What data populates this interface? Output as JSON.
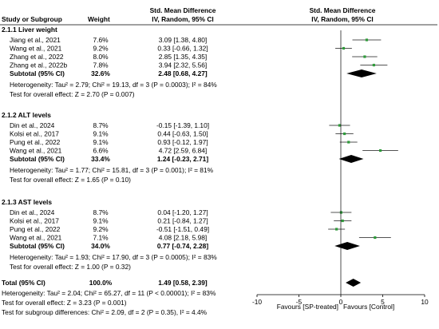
{
  "header": {
    "study_col": "Study or Subgroup",
    "weight_col": "Weight",
    "smd_col_1": "Std. Mean Difference",
    "smd_col_2": "IV, Random, 95% CI",
    "plot_col_1": "Std. Mean Difference",
    "plot_col_2": "IV, Random, 95% CI"
  },
  "chart_data": {
    "type": "forest",
    "xlim": [
      -10,
      10
    ],
    "xticks": [
      "-10",
      "-5",
      "0",
      "5",
      "10"
    ],
    "xlabel_left": "Favours [SP-treated]",
    "xlabel_right": "Favours [Control]",
    "colors": {
      "point": "#2e9b3a",
      "line": "#1a1a1a",
      "diamond": "#000000"
    },
    "subgroups": [
      {
        "title": "2.1.1 Liver weight",
        "studies": [
          {
            "study": "Jiang et al., 2021",
            "weight": "7.6%",
            "ci": "3.09 [1.38, 4.80]",
            "est": 3.09,
            "low": 1.38,
            "high": 4.8
          },
          {
            "study": "Wang et al., 2021",
            "weight": "9.2%",
            "ci": "0.33 [-0.66, 1.32]",
            "est": 0.33,
            "low": -0.66,
            "high": 1.32
          },
          {
            "study": "Zhang et al., 2022",
            "weight": "8.0%",
            "ci": "2.85 [1.35, 4.35]",
            "est": 2.85,
            "low": 1.35,
            "high": 4.35
          },
          {
            "study": "Zhang et al., 2022b",
            "weight": "7.8%",
            "ci": "3.94 [2.32, 5.56]",
            "est": 3.94,
            "low": 2.32,
            "high": 5.56
          }
        ],
        "subtotal": {
          "label": "Subtotal (95% CI)",
          "weight": "32.6%",
          "ci": "2.48 [0.68, 4.27]",
          "est": 2.48,
          "low": 0.68,
          "high": 4.27
        },
        "heterogeneity": "Heterogeneity: Tau² = 2.79; Chi² = 19.13, df = 3 (P = 0.0003); I² = 84%",
        "overall": "Test for overall effect: Z = 2.70 (P = 0.007)"
      },
      {
        "title": "2.1.2 ALT levels",
        "studies": [
          {
            "study": "Din et al., 2024",
            "weight": "8.7%",
            "ci": "-0.15 [-1.39, 1.10]",
            "est": -0.15,
            "low": -1.39,
            "high": 1.1
          },
          {
            "study": "Kolsi et al., 2017",
            "weight": "9.1%",
            "ci": "0.44 [-0.63, 1.50]",
            "est": 0.44,
            "low": -0.63,
            "high": 1.5
          },
          {
            "study": "Pung et al., 2022",
            "weight": "9.1%",
            "ci": "0.93 [-0.12, 1.97]",
            "est": 0.93,
            "low": -0.12,
            "high": 1.97
          },
          {
            "study": "Wang et al., 2021",
            "weight": "6.6%",
            "ci": "4.72 [2.59, 6.84]",
            "est": 4.72,
            "low": 2.59,
            "high": 6.84
          }
        ],
        "subtotal": {
          "label": "Subtotal (95% CI)",
          "weight": "33.4%",
          "ci": "1.24 [-0.23, 2.71]",
          "est": 1.24,
          "low": -0.23,
          "high": 2.71
        },
        "heterogeneity": "Heterogeneity: Tau² = 1.77; Chi² = 15.81, df = 3 (P = 0.001); I² = 81%",
        "overall": "Test for overall effect: Z = 1.65 (P = 0.10)"
      },
      {
        "title": "2.1.3 AST levels",
        "studies": [
          {
            "study": "Din et al., 2024",
            "weight": "8.7%",
            "ci": "0.04 [-1.20, 1.27]",
            "est": 0.04,
            "low": -1.2,
            "high": 1.27
          },
          {
            "study": "Kolsi et al., 2017",
            "weight": "9.1%",
            "ci": "0.21 [-0.84, 1.27]",
            "est": 0.21,
            "low": -0.84,
            "high": 1.27
          },
          {
            "study": "Pung et al., 2022",
            "weight": "9.2%",
            "ci": "-0.51 [-1.51, 0.49]",
            "est": -0.51,
            "low": -1.51,
            "high": 0.49
          },
          {
            "study": "Wang et al., 2021",
            "weight": "7.1%",
            "ci": "4.08 [2.18, 5.98]",
            "est": 4.08,
            "low": 2.18,
            "high": 5.98
          }
        ],
        "subtotal": {
          "label": "Subtotal (95% CI)",
          "weight": "34.0%",
          "ci": "0.77 [-0.74, 2.28]",
          "est": 0.77,
          "low": -0.74,
          "high": 2.28
        },
        "heterogeneity": "Heterogeneity: Tau² = 1.93; Chi² = 17.90, df = 3 (P = 0.0005); I² = 83%",
        "overall": "Test for overall effect: Z = 1.00 (P = 0.32)"
      }
    ],
    "total": {
      "label": "Total (95% CI)",
      "weight": "100.0%",
      "ci": "1.49 [0.58, 2.39]",
      "est": 1.49,
      "low": 0.58,
      "high": 2.39
    },
    "total_heterogeneity": "Heterogeneity: Tau² = 2.04; Chi² = 65.27, df = 11 (P < 0.00001); I² = 83%",
    "total_overall": "Test for overall effect: Z = 3.23 (P = 0.001)",
    "subgroup_differences": "Test for subgroup differences: Chi² = 2.09, df = 2 (P = 0.35), I² = 4.4%"
  }
}
